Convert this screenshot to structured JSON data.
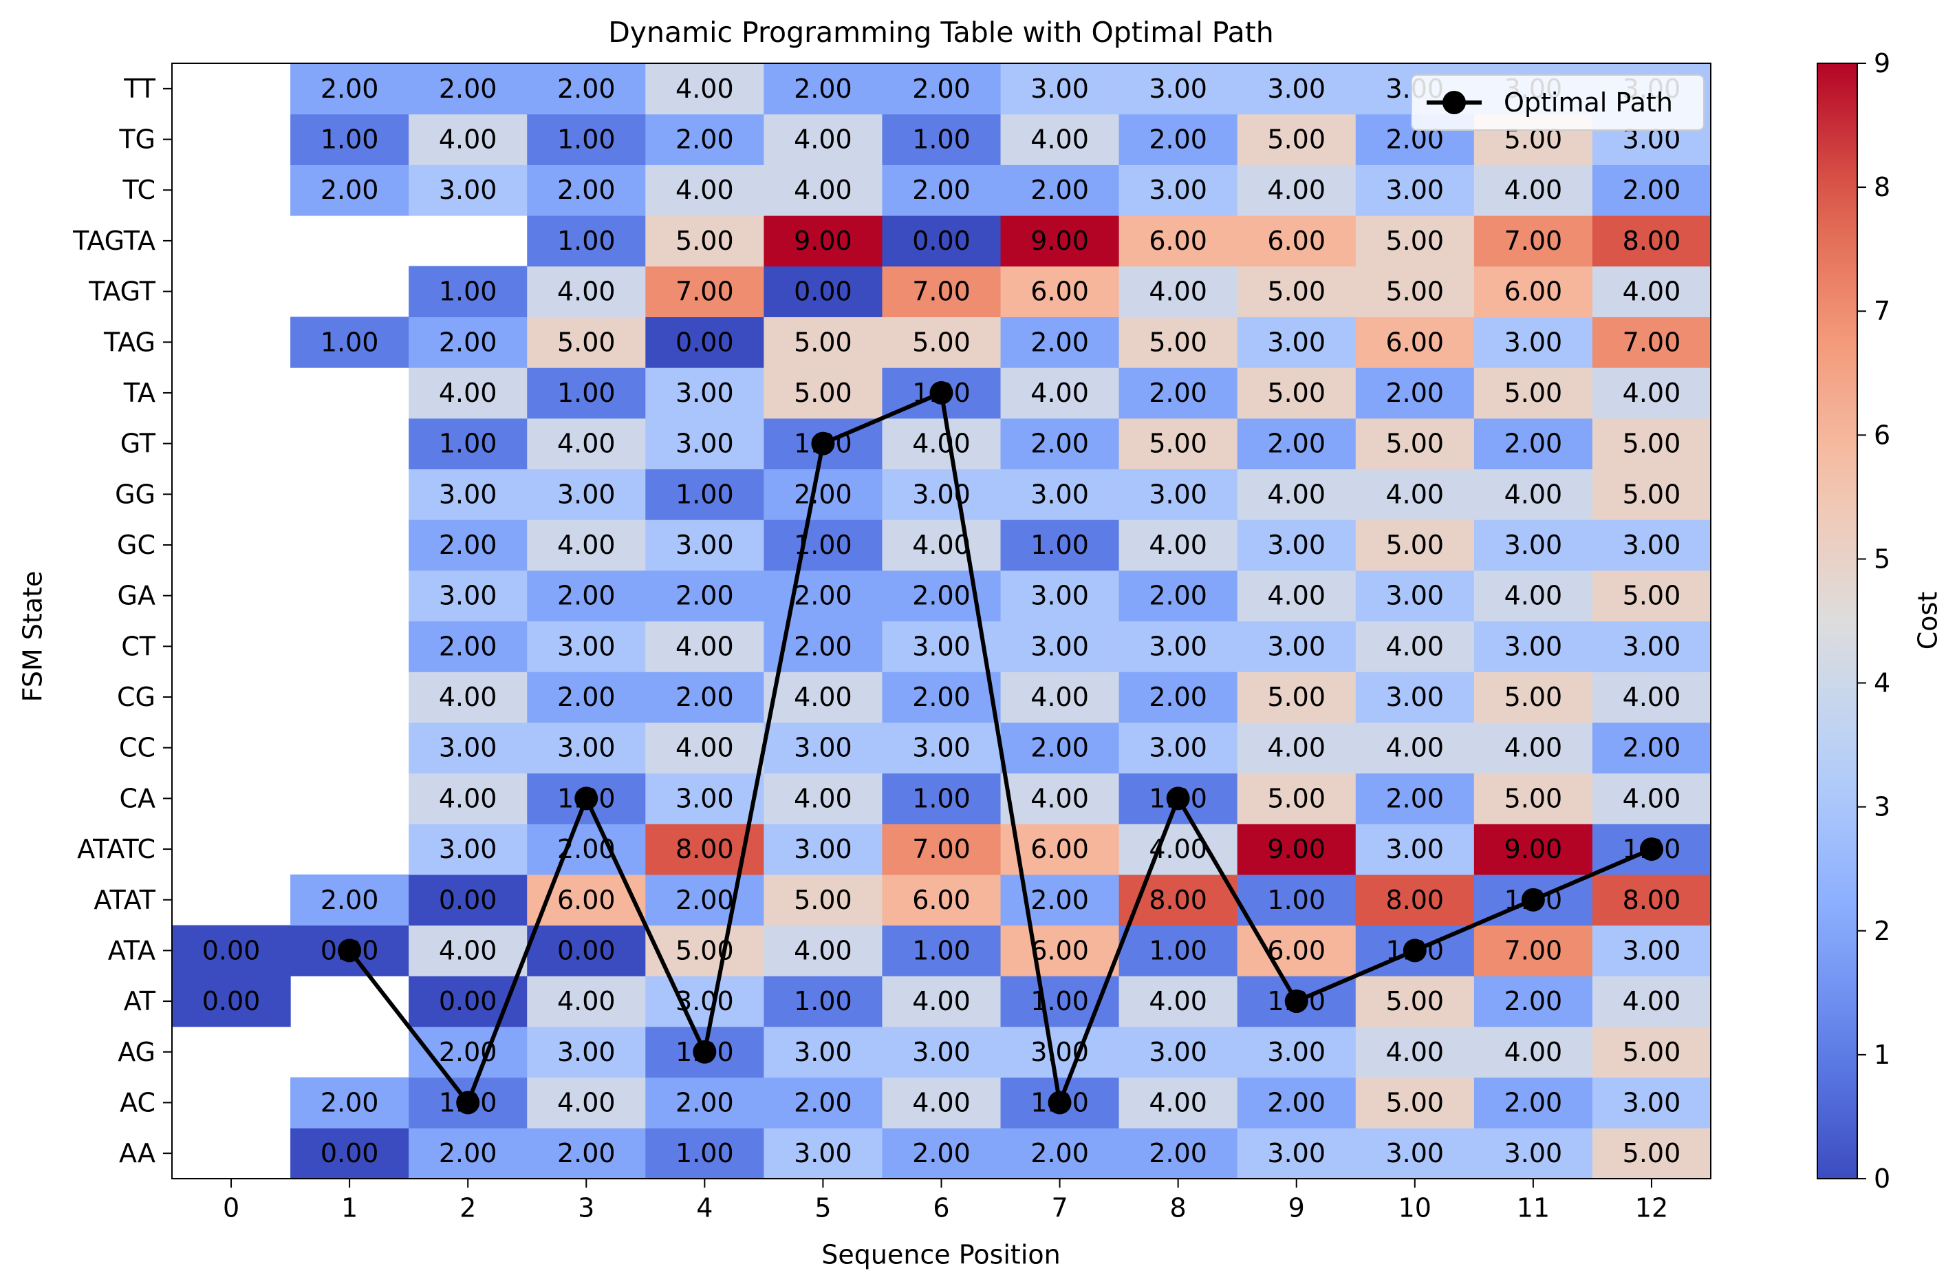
{
  "chart_data": {
    "type": "heatmap",
    "title": "Dynamic Programming Table with Optimal Path",
    "xlabel": "Sequence Position",
    "ylabel": "FSM State",
    "x": [
      "0",
      "1",
      "2",
      "3",
      "4",
      "5",
      "6",
      "7",
      "8",
      "9",
      "10",
      "11",
      "12"
    ],
    "y": [
      "AA",
      "AC",
      "AG",
      "AT",
      "ATA",
      "ATAT",
      "ATATC",
      "CA",
      "CC",
      "CG",
      "CT",
      "GA",
      "GC",
      "GG",
      "GT",
      "TA",
      "TAG",
      "TAGT",
      "TAGTA",
      "TC",
      "TG",
      "TT"
    ],
    "values": [
      [
        null,
        0,
        2,
        2,
        1,
        3,
        2,
        2,
        2,
        3,
        3,
        3,
        5
      ],
      [
        null,
        2,
        1,
        4,
        2,
        2,
        4,
        1,
        4,
        2,
        5,
        2,
        3
      ],
      [
        null,
        null,
        2,
        3,
        1,
        3,
        3,
        3,
        3,
        3,
        4,
        4,
        5
      ],
      [
        0,
        null,
        0,
        4,
        3,
        1,
        4,
        1,
        4,
        1,
        5,
        2,
        4
      ],
      [
        0,
        0,
        4,
        0,
        5,
        4,
        1,
        6,
        1,
        6,
        1,
        7,
        3
      ],
      [
        null,
        2,
        0,
        6,
        2,
        5,
        6,
        2,
        8,
        1,
        8,
        1,
        8
      ],
      [
        null,
        null,
        3,
        2,
        8,
        3,
        7,
        6,
        4,
        9,
        3,
        9,
        1
      ],
      [
        null,
        null,
        4,
        1,
        3,
        4,
        1,
        4,
        1,
        5,
        2,
        5,
        4
      ],
      [
        null,
        null,
        3,
        3,
        4,
        3,
        3,
        2,
        3,
        4,
        4,
        4,
        2
      ],
      [
        null,
        null,
        4,
        2,
        2,
        4,
        2,
        4,
        2,
        5,
        3,
        5,
        4
      ],
      [
        null,
        null,
        2,
        3,
        4,
        2,
        3,
        3,
        3,
        3,
        4,
        3,
        3
      ],
      [
        null,
        null,
        3,
        2,
        2,
        2,
        2,
        3,
        2,
        4,
        3,
        4,
        5
      ],
      [
        null,
        null,
        2,
        4,
        3,
        1,
        4,
        1,
        4,
        3,
        5,
        3,
        3
      ],
      [
        null,
        null,
        3,
        3,
        1,
        2,
        3,
        3,
        3,
        4,
        4,
        4,
        5
      ],
      [
        null,
        null,
        1,
        4,
        3,
        1,
        4,
        2,
        5,
        2,
        5,
        2,
        5
      ],
      [
        null,
        null,
        4,
        1,
        3,
        5,
        1,
        4,
        2,
        5,
        2,
        5,
        4
      ],
      [
        null,
        1,
        2,
        5,
        0,
        5,
        5,
        2,
        5,
        3,
        6,
        3,
        7
      ],
      [
        null,
        null,
        1,
        4,
        7,
        0,
        7,
        6,
        4,
        5,
        5,
        6,
        4
      ],
      [
        null,
        null,
        null,
        1,
        5,
        9,
        0,
        9,
        6,
        6,
        5,
        7,
        8
      ],
      [
        null,
        2,
        3,
        2,
        4,
        4,
        2,
        2,
        3,
        4,
        3,
        4,
        2
      ],
      [
        null,
        1,
        4,
        1,
        2,
        4,
        1,
        4,
        2,
        5,
        2,
        5,
        3
      ],
      [
        null,
        2,
        2,
        2,
        4,
        2,
        2,
        3,
        3,
        3,
        3,
        3,
        3
      ]
    ],
    "path": {
      "name": "Optimal Path",
      "x": [
        1,
        2,
        3,
        4,
        5,
        6,
        7,
        8,
        9,
        10,
        11,
        12
      ],
      "y": [
        "ATA",
        "AC",
        "CA",
        "AG",
        "GT",
        "TA",
        "AC",
        "CA",
        "AT",
        "ATA",
        "ATAT",
        "ATATC"
      ]
    },
    "colorbar": {
      "label": "Cost",
      "min": 0,
      "max": 9,
      "ticks": [
        "0",
        "1",
        "2",
        "3",
        "4",
        "5",
        "6",
        "7",
        "8",
        "9"
      ]
    },
    "colormap": "coolwarm",
    "legend": "top-right",
    "grid": false
  }
}
